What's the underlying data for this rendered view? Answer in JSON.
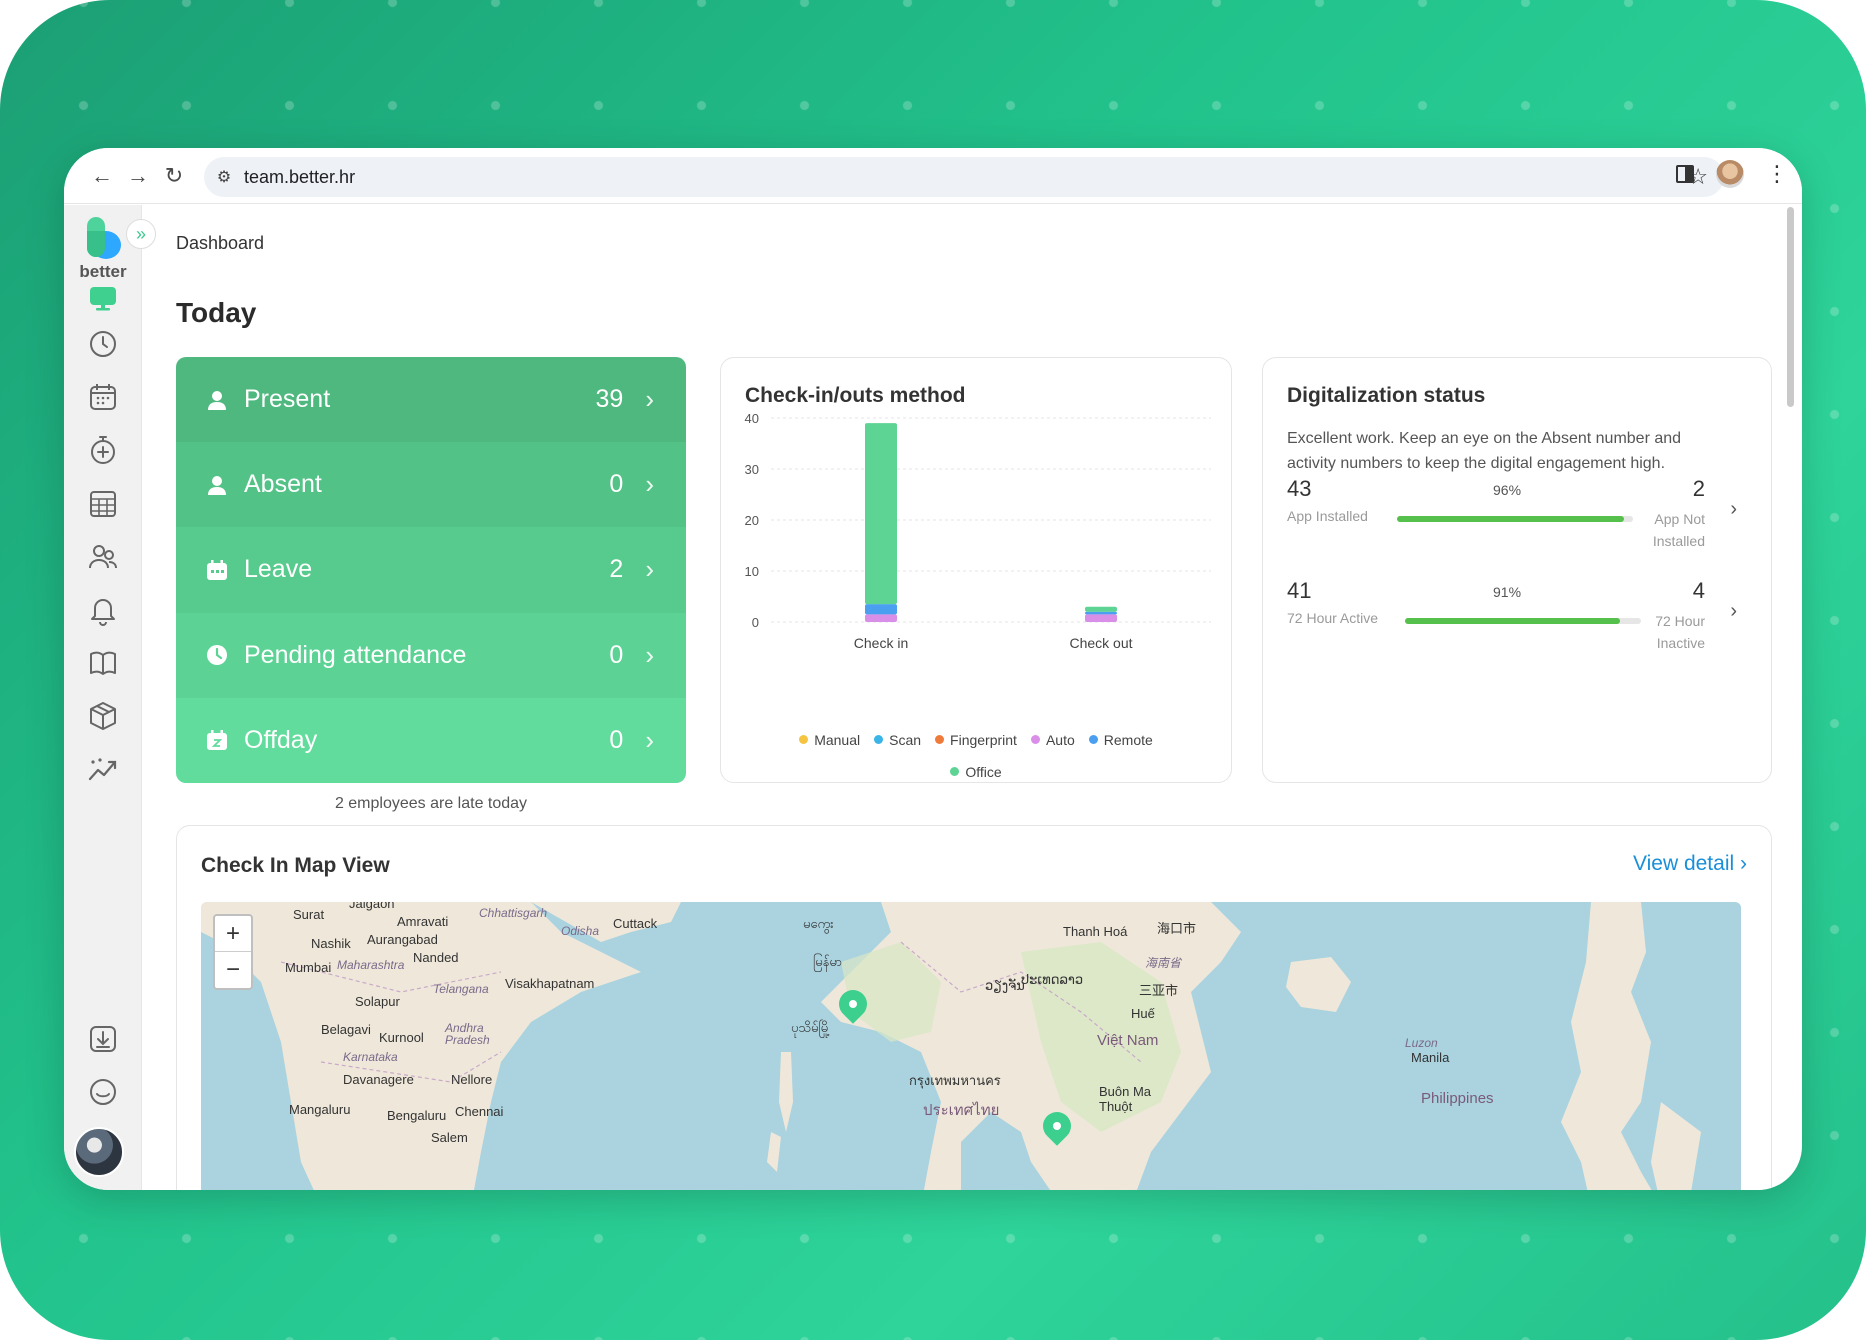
{
  "browser": {
    "url": "team.better.hr"
  },
  "sidebar": {
    "logo_text": "better",
    "items": [
      {
        "name": "dashboard-icon",
        "active": true
      },
      {
        "name": "clock-icon"
      },
      {
        "name": "calendar-icon"
      },
      {
        "name": "timer-icon"
      },
      {
        "name": "table-icon"
      },
      {
        "name": "users-icon"
      },
      {
        "name": "bell-icon"
      },
      {
        "name": "book-icon"
      },
      {
        "name": "box-icon"
      },
      {
        "name": "analytics-icon"
      }
    ],
    "bottom_items": [
      {
        "name": "download-icon"
      },
      {
        "name": "chat-icon"
      }
    ]
  },
  "header": {
    "breadcrumb": "Dashboard",
    "title": "Today"
  },
  "attendance": {
    "rows": [
      {
        "label": "Present",
        "count": "39",
        "color": "#4fb87f"
      },
      {
        "label": "Absent",
        "count": "0",
        "color": "#53c286"
      },
      {
        "label": "Leave",
        "count": "2",
        "color": "#57ca8d"
      },
      {
        "label": "Pending attendance",
        "count": "0",
        "color": "#5cd395"
      },
      {
        "label": "Offday",
        "count": "0",
        "color": "#62dc9d"
      }
    ],
    "late_note": "2 employees are late today"
  },
  "checkin_chart": {
    "title": "Check-in/outs method",
    "legend": [
      {
        "label": "Manual",
        "color": "#f5c542"
      },
      {
        "label": "Scan",
        "color": "#3bb4e8"
      },
      {
        "label": "Fingerprint",
        "color": "#f07a3a"
      },
      {
        "label": "Auto",
        "color": "#d98ee8"
      },
      {
        "label": "Remote",
        "color": "#4a9ff0"
      },
      {
        "label": "Office",
        "color": "#5dd394"
      }
    ]
  },
  "chart_data": {
    "type": "bar",
    "stacked": true,
    "categories": [
      "Check in",
      "Check out"
    ],
    "ylim": [
      0,
      40
    ],
    "yticks": [
      "0",
      "10",
      "20",
      "30",
      "40"
    ],
    "series": [
      {
        "name": "Manual",
        "values": [
          0,
          0
        ],
        "color": "#f5c542"
      },
      {
        "name": "Scan",
        "values": [
          0,
          0
        ],
        "color": "#3bb4e8"
      },
      {
        "name": "Fingerprint",
        "values": [
          0,
          0
        ],
        "color": "#f07a3a"
      },
      {
        "name": "Auto",
        "values": [
          1.5,
          1.5
        ],
        "color": "#d98ee8"
      },
      {
        "name": "Remote",
        "values": [
          2,
          0.5
        ],
        "color": "#4a9ff0"
      },
      {
        "name": "Office",
        "values": [
          35.5,
          1
        ],
        "color": "#5dd394"
      }
    ],
    "grid": true
  },
  "digitalization": {
    "title": "Digitalization status",
    "description": "Excellent work. Keep an eye on the Absent number and activity numbers to keep the digital engagement high.",
    "metrics": [
      {
        "left_value": "43",
        "left_label": "App Installed",
        "percent": "96%",
        "ratio": 0.96,
        "right_value": "2",
        "right_label": "App Not Installed"
      },
      {
        "left_value": "41",
        "left_label": "72 Hour Active",
        "percent": "91%",
        "ratio": 0.91,
        "right_value": "4",
        "right_label": "72 Hour Inactive"
      }
    ]
  },
  "map": {
    "title": "Check In Map View",
    "view_detail": "View detail",
    "zoom_in": "+",
    "zoom_out": "−",
    "labels": [
      {
        "text": "Jalgaon"
      },
      {
        "text": "Surat"
      },
      {
        "text": "Amravati"
      },
      {
        "text": "Chhattisgarh"
      },
      {
        "text": "Nashik"
      },
      {
        "text": "Aurangabad"
      },
      {
        "text": "Odisha"
      },
      {
        "text": "Cuttack"
      },
      {
        "text": "Mumbai"
      },
      {
        "text": "Maharashtra"
      },
      {
        "text": "Nanded"
      },
      {
        "text": "Telangana"
      },
      {
        "text": "Visakhapatnam"
      },
      {
        "text": "Solapur"
      },
      {
        "text": "Belagavi"
      },
      {
        "text": "Kurnool"
      },
      {
        "text": "Andhra Pradesh"
      },
      {
        "text": "Karnataka"
      },
      {
        "text": "Davanagere"
      },
      {
        "text": "Nellore"
      },
      {
        "text": "Mangaluru"
      },
      {
        "text": "Bengaluru"
      },
      {
        "text": "Chennai"
      },
      {
        "text": "Salem"
      },
      {
        "text": "မကွေး"
      },
      {
        "text": "မြန်မာ"
      },
      {
        "text": "ပုသိမ်မြို့"
      },
      {
        "text": "ວຽງຈັນ"
      },
      {
        "text": "ປະເທດລາວ"
      },
      {
        "text": "Thanh Hoá"
      },
      {
        "text": "Huế"
      },
      {
        "text": "Việt Nam"
      },
      {
        "text": "กรุงเทพมหานคร"
      },
      {
        "text": "ประเทศไทย"
      },
      {
        "text": "Buôn Ma Thuột"
      },
      {
        "text": "海口市"
      },
      {
        "text": "海南省"
      },
      {
        "text": "三亚市"
      },
      {
        "text": "Luzon"
      },
      {
        "text": "Manila"
      },
      {
        "text": "Philippines"
      }
    ]
  }
}
